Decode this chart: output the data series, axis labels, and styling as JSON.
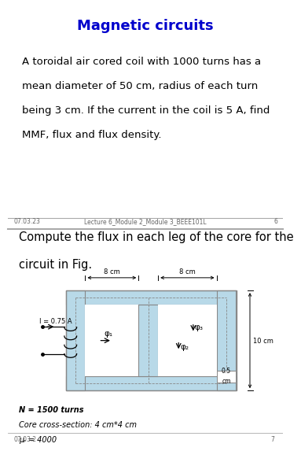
{
  "title": "Magnetic circuits",
  "title_color": "#0000CC",
  "title_fontsize": 13,
  "slide1_text_line1": "A toroidal air cored coil with 1000 turns has a",
  "slide1_text_line2": "mean diameter of 50 cm, radius of each turn",
  "slide1_text_line3": "being 3 cm. If the current in the coil is 5 A, find",
  "slide1_text_line4": "MMF, flux and flux density.",
  "slide1_text_fontsize": 9.5,
  "footer_left1": "07.03.23",
  "footer_center1": "Lecture 6_Module 2_Module 3_BEEE101L",
  "footer_right1": "6",
  "slide2_heading_line1": "Compute the flux in each leg of the core for the",
  "slide2_heading_line2": "circuit in Fig.",
  "slide2_heading_fontsize": 10.5,
  "circuit_label_I": "I = 0.75 A",
  "circuit_label_N": "N = 1500 turns",
  "circuit_label_core": "Core cross-section: 4 cm*4 cm",
  "circuit_label_mu": "μᵣ = 4000",
  "circuit_label_8cm_1": "8 cm",
  "circuit_label_8cm_2": "8 cm",
  "circuit_label_10cm": "10 cm",
  "circuit_label_05cm": "0.5",
  "circuit_label_cm2": "cm",
  "circuit_label_phi1": "φ₁",
  "circuit_label_phi2": "φ₂",
  "circuit_label_phi3": "φ₃",
  "footer_left2": "07.03.2",
  "footer_right2": "7",
  "bg_color": "#FFFFFF",
  "divider_color": "#AAAAAA",
  "core_fill": "#B8D9E8",
  "core_edge": "#888888",
  "core_dashed": "#888888"
}
